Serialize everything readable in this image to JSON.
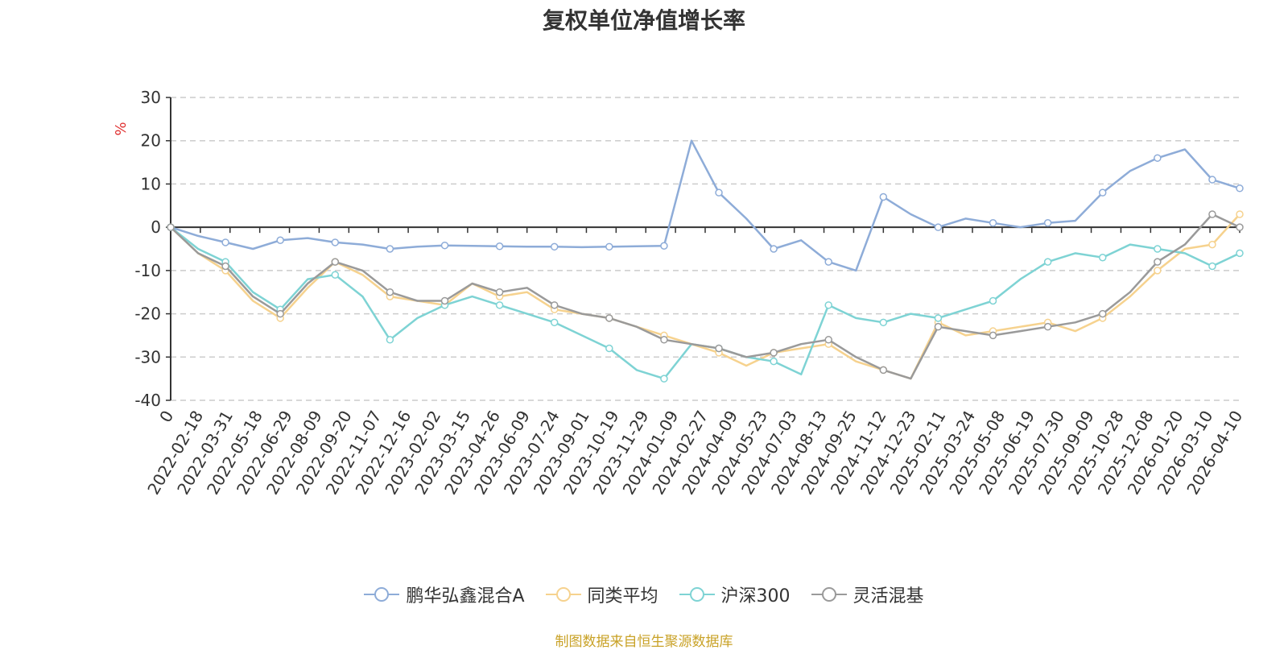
{
  "chart_data": {
    "type": "line",
    "title": "复权单位净值增长率",
    "ylabel": "%",
    "ylim": [
      -40,
      30
    ],
    "yticks": [
      30,
      20,
      10,
      0,
      -10,
      -20,
      -30,
      -40
    ],
    "grid": true,
    "legend_position": "bottom",
    "x_tick_labels": [
      "0",
      "2022-02-18",
      "2022-03-31",
      "2022-05-18",
      "2022-06-29",
      "2022-08-09",
      "2022-09-20",
      "2022-11-07",
      "2022-12-16",
      "2023-02-02",
      "2023-03-15",
      "2023-04-26",
      "2023-06-09",
      "2023-07-24",
      "2023-09-01",
      "2023-10-19",
      "2023-11-29",
      "2024-01-09",
      "2024-02-27",
      "2024-04-09",
      "2024-05-23",
      "2024-07-03",
      "2024-08-13",
      "2024-09-25",
      "2024-11-12",
      "2024-12-23",
      "2025-02-11",
      "2025-03-24",
      "2025-05-08",
      "2025-06-19",
      "2025-07-30",
      "2025-09-09",
      "2025-10-28",
      "2025-12-08",
      "2026-01-20",
      "2026-03-10",
      "2026-04-10"
    ],
    "series": [
      {
        "name": "鹏华弘鑫混合A",
        "color": "#8eacd8",
        "values": [
          0,
          -2,
          -3.5,
          -5,
          -3,
          -2.5,
          -3.5,
          -4,
          -5,
          -4.5,
          -4.2,
          -4.3,
          -4.4,
          -4.5,
          -4.5,
          -4.6,
          -4.5,
          -4.4,
          -4.3,
          20,
          8,
          2,
          -5,
          -3,
          -8,
          -10,
          7,
          3,
          0,
          2,
          1,
          0,
          1,
          1.5,
          8,
          13,
          16,
          18,
          11,
          9
        ]
      },
      {
        "name": "同类平均",
        "color": "#f6d28e",
        "values": [
          0,
          -6,
          -10,
          -17,
          -21,
          -14,
          -8,
          -11,
          -16,
          -17,
          -18,
          -13,
          -16,
          -15,
          -19,
          -20,
          -21,
          -23,
          -25,
          -27,
          -29,
          -32,
          -29,
          -28,
          -27,
          -31,
          -33,
          -35,
          -22,
          -25,
          -24,
          -23,
          -22,
          -24,
          -21,
          -16,
          -10,
          -5,
          -4,
          3
        ]
      },
      {
        "name": "沪深300",
        "color": "#7ed3d4",
        "values": [
          0,
          -5,
          -8,
          -15,
          -19,
          -12,
          -11,
          -16,
          -26,
          -21,
          -18,
          -16,
          -18,
          -20,
          -22,
          -25,
          -28,
          -33,
          -35,
          -27,
          -28,
          -30,
          -31,
          -34,
          -18,
          -21,
          -22,
          -20,
          -21,
          -19,
          -17,
          -12,
          -8,
          -6,
          -7,
          -4,
          -5,
          -6,
          -9,
          -6
        ]
      },
      {
        "name": "灵活混基",
        "color": "#9a9a9a",
        "values": [
          0,
          -6,
          -9,
          -16,
          -20,
          -13,
          -8,
          -10,
          -15,
          -17,
          -17,
          -13,
          -15,
          -14,
          -18,
          -20,
          -21,
          -23,
          -26,
          -27,
          -28,
          -30,
          -29,
          -27,
          -26,
          -30,
          -33,
          -35,
          -23,
          -24,
          -25,
          -24,
          -23,
          -22,
          -20,
          -15,
          -8,
          -4,
          3,
          0
        ]
      }
    ]
  },
  "footer": {
    "source": "制图数据来自恒生聚源数据库"
  }
}
